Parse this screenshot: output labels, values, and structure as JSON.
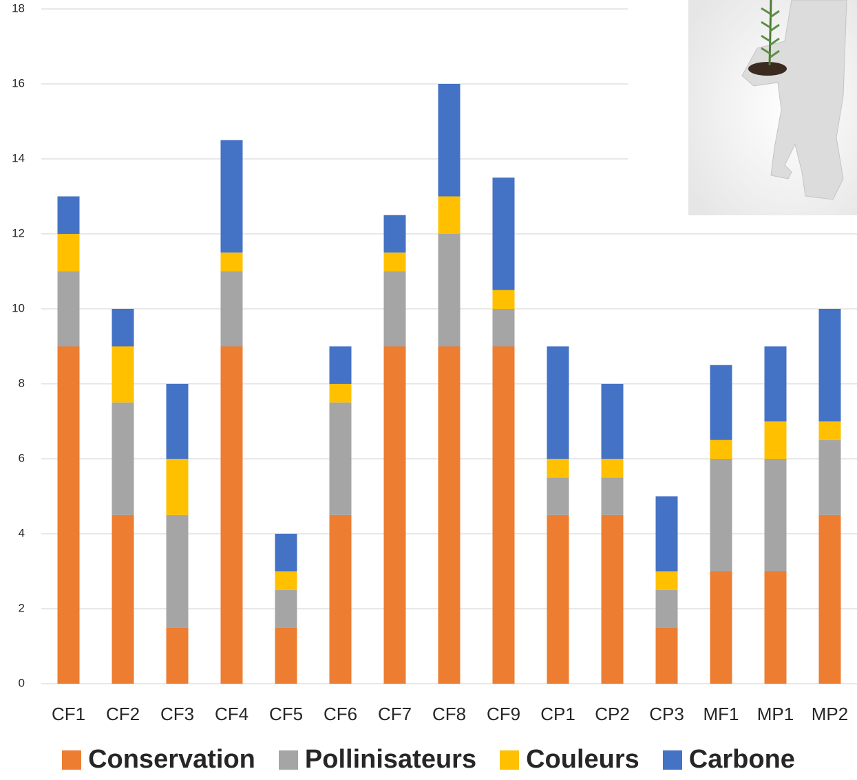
{
  "chart_data": {
    "type": "stacked_bar",
    "categories": [
      "CF1",
      "CF2",
      "CF3",
      "CF4",
      "CF5",
      "CF6",
      "CF7",
      "CF8",
      "CF9",
      "CP1",
      "CP2",
      "CP3",
      "MF1",
      "MP1",
      "MP2"
    ],
    "series": [
      {
        "name": "Conservation",
        "color": "#ed7d31",
        "values": [
          9,
          4.5,
          1.5,
          9,
          1.5,
          4.5,
          9,
          9,
          9,
          4.5,
          4.5,
          1.5,
          3,
          3,
          4.5
        ]
      },
      {
        "name": "Pollinisateurs",
        "color": "#a5a5a5",
        "values": [
          2,
          3,
          3,
          2,
          1,
          3,
          2,
          3,
          1,
          1,
          1,
          1,
          3,
          3,
          2
        ]
      },
      {
        "name": "Couleurs",
        "color": "#ffc000",
        "values": [
          1,
          1.5,
          1.5,
          0.5,
          0.5,
          0.5,
          0.5,
          1,
          0.5,
          0.5,
          0.5,
          0.5,
          0.5,
          1,
          0.5
        ]
      },
      {
        "name": "Carbone",
        "color": "#4472c4",
        "values": [
          1,
          1,
          2,
          3,
          1,
          1,
          1,
          3,
          3,
          3,
          2,
          2,
          2,
          2,
          3
        ]
      }
    ],
    "ylim": [
      0,
      18
    ],
    "yticks": [
      0,
      2,
      4,
      6,
      8,
      10,
      12,
      14,
      16,
      18
    ],
    "grid": true,
    "legend": "bottom"
  }
}
